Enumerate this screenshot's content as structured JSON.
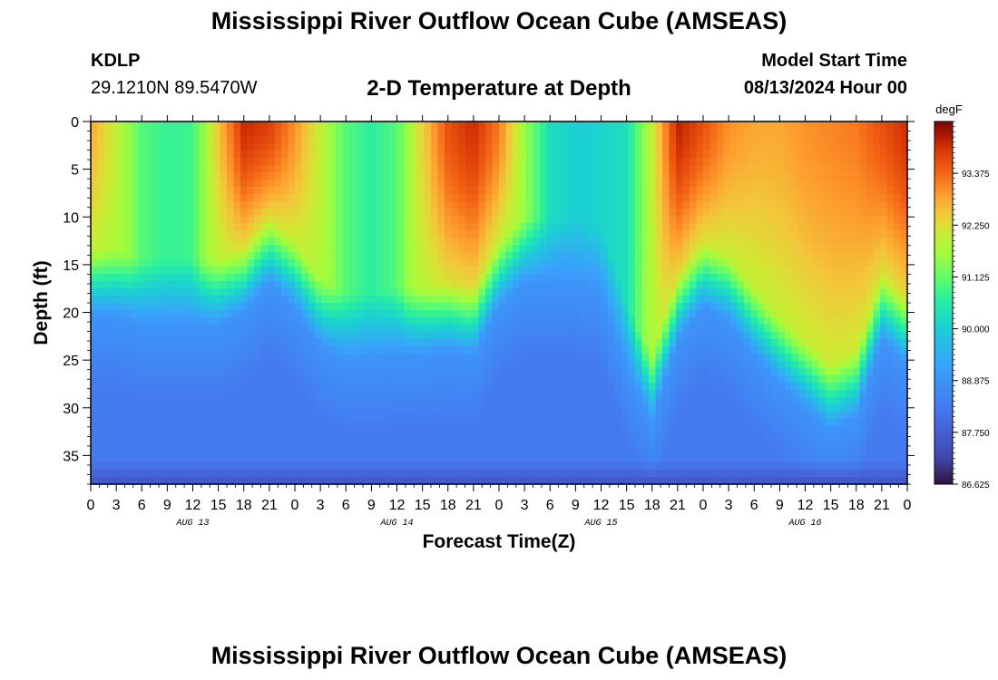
{
  "header": {
    "title": "Mississippi River Outflow Ocean Cube (AMSEAS)",
    "station": "KDLP",
    "coordinates": "29.1210N  89.5470W",
    "subtitle": "2-D Temperature at Depth",
    "model_start_label": "Model Start Time",
    "model_start_value": "08/13/2024 Hour 00",
    "footer_title": "Mississippi River Outflow Ocean Cube (AMSEAS)"
  },
  "chart_data": {
    "type": "heatmap",
    "title": "2-D Temperature at Depth",
    "xlabel": "Forecast Time(Z)",
    "ylabel": "Depth (ft)",
    "units": "degF",
    "x_hours": [
      0,
      96
    ],
    "x_ticks": [
      "0",
      "3",
      "6",
      "9",
      "12",
      "15",
      "18",
      "21",
      "0",
      "3",
      "6",
      "9",
      "12",
      "15",
      "18",
      "21",
      "0",
      "3",
      "6",
      "9",
      "12",
      "15",
      "18",
      "21",
      "0",
      "3",
      "6",
      "9",
      "12",
      "15",
      "18",
      "21",
      "0"
    ],
    "date_labels": [
      {
        "label": "AUG 13",
        "hour": 12
      },
      {
        "label": "AUG 14",
        "hour": 36
      },
      {
        "label": "AUG 15",
        "hour": 60
      },
      {
        "label": "AUG 16",
        "hour": 84
      }
    ],
    "ylim": [
      0,
      38
    ],
    "y_ticks": [
      0,
      5,
      10,
      15,
      20,
      25,
      30,
      35
    ],
    "colorbar": {
      "min": 86.625,
      "max": 94.5,
      "ticks": [
        "93.375",
        "92.250",
        "91.125",
        "90.000",
        "88.875",
        "87.750",
        "86.625"
      ],
      "tick_values": [
        93.375,
        92.25,
        91.125,
        90.0,
        88.875,
        87.75,
        86.625
      ]
    },
    "surface_temps": {
      "hours": [
        0,
        3,
        6,
        9,
        12,
        15,
        18,
        21,
        24,
        27,
        30,
        33,
        36,
        39,
        42,
        45,
        48,
        51,
        54,
        57,
        60,
        63,
        66,
        69,
        72,
        75,
        78,
        81,
        84,
        87,
        90,
        93,
        96
      ],
      "values": [
        92.8,
        92.0,
        91.0,
        90.7,
        90.8,
        92.5,
        94.0,
        93.8,
        93.0,
        92.0,
        91.0,
        90.6,
        91.0,
        92.4,
        93.6,
        94.0,
        93.2,
        91.6,
        90.3,
        90.0,
        90.1,
        90.3,
        92.0,
        94.1,
        93.6,
        93.0,
        92.8,
        92.8,
        93.0,
        93.1,
        93.2,
        93.6,
        94.0
      ]
    },
    "thermocline_depth_ft": {
      "hours": [
        0,
        3,
        6,
        9,
        12,
        15,
        18,
        21,
        24,
        27,
        30,
        33,
        36,
        39,
        42,
        45,
        48,
        51,
        54,
        57,
        60,
        63,
        66,
        69,
        72,
        75,
        78,
        81,
        84,
        87,
        90,
        93,
        96
      ],
      "values": [
        17.5,
        17.5,
        18.5,
        18.5,
        18.5,
        18.5,
        17.0,
        14.0,
        16.5,
        20.5,
        22.0,
        22.0,
        21.5,
        21.5,
        21.0,
        21.5,
        16.5,
        14.0,
        14.0,
        14.0,
        15.0,
        23.0,
        28.5,
        20.0,
        16.5,
        18.0,
        21.5,
        24.5,
        27.0,
        29.5,
        28.0,
        20.0,
        22.5
      ]
    },
    "deep_temp_degF": 88.3,
    "bottom_temp_degF": 87.5
  }
}
